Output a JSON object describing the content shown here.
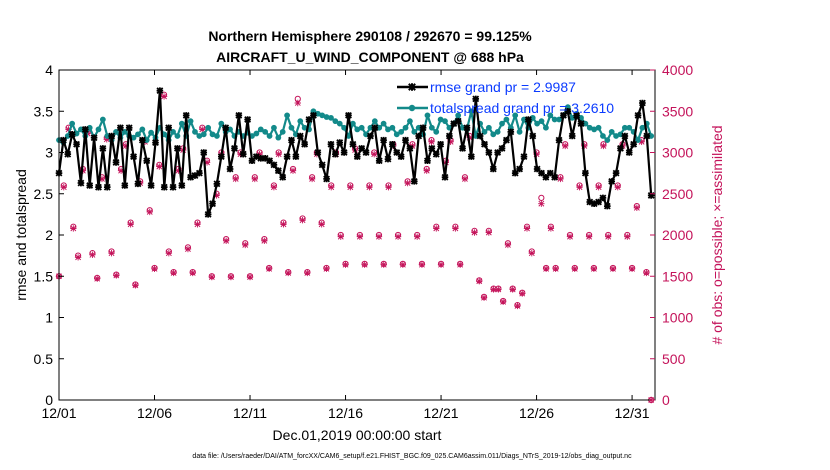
{
  "chart_data": {
    "type": "line",
    "title_line1": "Northern Hemisphere 290108 / 292670 = 99.125%",
    "title_line2": "AIRCRAFT_U_WIND_COMPONENT @ 688 hPa",
    "xlabel": "Dec.01,2019 00:00:00 start",
    "ylabel_left": "rmse and totalspread",
    "ylabel_right": "# of obs: o=possible; ×=assimilated",
    "footer": "data file: /Users/raeder/DAI/ATM_forcXX/CAM6_setup/f.e21.FHIST_BGC.f09_025.CAM6assim.011/Diags_NTrS_2019-12/obs_diag_output.nc",
    "x_ticks": [
      "12/01",
      "12/06",
      "12/11",
      "12/16",
      "12/21",
      "12/26",
      "12/31"
    ],
    "x_tick_days": [
      0,
      5,
      10,
      15,
      20,
      25,
      30
    ],
    "xlim": [
      0,
      31.2
    ],
    "ylim_left": [
      0,
      4
    ],
    "y_ticks_left": [
      "0",
      "0.5",
      "1",
      "1.5",
      "2",
      "2.5",
      "3",
      "3.5",
      "4"
    ],
    "ylim_right": [
      0,
      4000
    ],
    "y_ticks_right": [
      "0",
      "500",
      "1000",
      "1500",
      "2000",
      "2500",
      "3000",
      "3500",
      "4000"
    ],
    "colors": {
      "rmse": "#000000",
      "spread": "#138a8a",
      "obs": "#c4135a",
      "legend_text": "#0b3bff"
    },
    "series": [
      {
        "name": "rmse grand pr = 2.9987",
        "key": "rmse",
        "values": [
          2.75,
          3.15,
          2.98,
          3.22,
          3.1,
          2.63,
          3.28,
          2.6,
          3.18,
          2.58,
          3.05,
          2.58,
          3.2,
          2.88,
          3.3,
          2.6,
          3.3,
          2.95,
          2.62,
          3.15,
          2.9,
          2.6,
          3.12,
          3.75,
          2.58,
          3.3,
          2.58,
          3.05,
          2.6,
          3.45,
          2.7,
          2.72,
          2.75,
          3.0,
          2.25,
          2.38,
          2.62,
          2.95,
          3.3,
          2.8,
          3.05,
          3.45,
          2.98,
          3.4,
          2.9,
          2.95,
          2.93,
          2.93,
          2.9,
          2.85,
          2.78,
          2.7,
          2.95,
          3.15,
          2.95,
          3.2,
          3.1,
          3.4,
          3.45,
          3.0,
          2.85,
          2.68,
          3.1,
          2.98,
          3.12,
          3.0,
          3.45,
          3.1,
          2.95,
          3.05,
          3.0,
          3.2,
          3.3,
          2.9,
          3.15,
          2.92,
          3.1,
          3.0,
          2.95,
          3.15,
          3.05,
          2.65,
          3.2,
          3.3,
          2.9,
          3.05,
          2.98,
          3.1,
          2.7,
          3.2,
          3.35,
          3.38,
          3.05,
          3.3,
          2.95,
          3.65,
          3.2,
          3.1,
          3.0,
          2.8,
          3.0,
          3.05,
          3.15,
          3.25,
          2.75,
          2.8,
          2.95,
          3.4,
          3.2,
          2.8,
          2.75,
          2.7,
          2.75,
          2.7,
          3.15,
          3.45,
          3.5,
          3.2,
          3.45,
          3.35,
          2.75,
          2.4,
          2.38,
          2.4,
          2.45,
          2.35,
          2.65,
          2.75,
          3.05,
          3.2,
          3.0,
          3.1,
          3.45,
          3.6,
          3.2,
          2.48
        ]
      },
      {
        "name": "totalspread grand pr = 3.2610",
        "key": "spread",
        "values": [
          3.15,
          3.12,
          3.2,
          3.35,
          3.23,
          3.28,
          3.2,
          3.3,
          3.18,
          3.28,
          3.4,
          3.2,
          3.15,
          3.25,
          3.18,
          3.25,
          3.2,
          3.18,
          3.22,
          3.28,
          3.15,
          3.24,
          3.18,
          3.3,
          3.22,
          3.15,
          3.25,
          3.2,
          3.35,
          3.2,
          3.38,
          3.25,
          3.2,
          3.22,
          3.3,
          3.22,
          3.2,
          3.35,
          3.25,
          3.28,
          3.2,
          3.25,
          3.2,
          3.24,
          3.2,
          3.23,
          3.28,
          3.25,
          3.2,
          3.3,
          3.18,
          3.25,
          3.45,
          3.3,
          3.22,
          3.38,
          3.3,
          3.28,
          3.5,
          3.47,
          3.45,
          3.43,
          3.42,
          3.38,
          3.35,
          3.3,
          3.2,
          3.35,
          3.28,
          3.3,
          3.22,
          3.3,
          3.38,
          3.3,
          3.35,
          3.28,
          3.3,
          3.22,
          3.25,
          3.3,
          3.38,
          3.25,
          3.3,
          3.22,
          3.45,
          3.3,
          3.25,
          3.4,
          3.38,
          3.3,
          3.35,
          3.45,
          3.3,
          3.28,
          3.5,
          3.2,
          3.35,
          3.25,
          3.3,
          3.22,
          3.25,
          3.35,
          3.4,
          3.3,
          3.45,
          3.25,
          3.4,
          3.3,
          3.42,
          3.35,
          3.38,
          3.3,
          3.45,
          3.4,
          3.4,
          3.45,
          3.55,
          3.42,
          3.47,
          3.42,
          3.35,
          3.3,
          3.28,
          3.3,
          3.2,
          3.15,
          3.25,
          3.2,
          3.22,
          3.3,
          3.3,
          3.25,
          3.15,
          3.3,
          3.35,
          3.2
        ]
      }
    ],
    "obs_possible": [
      [
        0.0,
        1500
      ],
      [
        0.25,
        2600
      ],
      [
        0.5,
        3300
      ],
      [
        0.75,
        2100
      ],
      [
        1.0,
        1750
      ],
      [
        1.25,
        2800
      ],
      [
        1.5,
        3250
      ],
      [
        1.75,
        1780
      ],
      [
        2.0,
        1480
      ],
      [
        2.25,
        2700
      ],
      [
        2.5,
        3180
      ],
      [
        2.75,
        1800
      ],
      [
        3.0,
        1520
      ],
      [
        3.25,
        2800
      ],
      [
        3.5,
        3100
      ],
      [
        3.75,
        2150
      ],
      [
        4.0,
        1400
      ],
      [
        4.25,
        2650
      ],
      [
        4.5,
        3150
      ],
      [
        4.75,
        2300
      ],
      [
        5.0,
        1600
      ],
      [
        5.25,
        2850
      ],
      [
        5.5,
        3700
      ],
      [
        5.75,
        1800
      ],
      [
        6.0,
        1550
      ],
      [
        6.25,
        2800
      ],
      [
        6.5,
        3050
      ],
      [
        6.75,
        1850
      ],
      [
        7.0,
        1550
      ],
      [
        7.25,
        2150
      ],
      [
        7.5,
        3300
      ],
      [
        7.75,
        2900
      ],
      [
        8.0,
        1500
      ],
      [
        8.25,
        2500
      ],
      [
        8.5,
        3000
      ],
      [
        8.75,
        1950
      ],
      [
        9.0,
        1500
      ],
      [
        9.25,
        2700
      ],
      [
        9.5,
        3000
      ],
      [
        9.75,
        1900
      ],
      [
        10.0,
        1500
      ],
      [
        10.25,
        2700
      ],
      [
        10.5,
        3000
      ],
      [
        10.75,
        1950
      ],
      [
        11.0,
        1600
      ],
      [
        11.25,
        2600
      ],
      [
        11.5,
        3000
      ],
      [
        11.75,
        2150
      ],
      [
        12.0,
        1550
      ],
      [
        12.25,
        2800
      ],
      [
        12.5,
        3650
      ],
      [
        12.75,
        2200
      ],
      [
        13.0,
        1550
      ],
      [
        13.25,
        2700
      ],
      [
        13.5,
        3000
      ],
      [
        13.75,
        2150
      ],
      [
        14.0,
        1600
      ],
      [
        14.25,
        2600
      ],
      [
        14.5,
        3000
      ],
      [
        14.75,
        2000
      ],
      [
        15.0,
        1650
      ],
      [
        15.25,
        2600
      ],
      [
        15.5,
        3050
      ],
      [
        15.75,
        2000
      ],
      [
        16.0,
        1650
      ],
      [
        16.25,
        2600
      ],
      [
        16.5,
        3000
      ],
      [
        16.75,
        2000
      ],
      [
        17.0,
        1650
      ],
      [
        17.25,
        2600
      ],
      [
        17.5,
        3100
      ],
      [
        17.75,
        2000
      ],
      [
        18.0,
        1650
      ],
      [
        18.25,
        2650
      ],
      [
        18.5,
        3100
      ],
      [
        18.75,
        2000
      ],
      [
        19.0,
        1650
      ],
      [
        19.25,
        2800
      ],
      [
        19.5,
        3150
      ],
      [
        19.75,
        2100
      ],
      [
        20.0,
        1650
      ],
      [
        20.25,
        2900
      ],
      [
        20.5,
        3150
      ],
      [
        20.75,
        2100
      ],
      [
        21.0,
        1650
      ],
      [
        21.25,
        2700
      ],
      [
        21.5,
        3200
      ],
      [
        21.75,
        2050
      ],
      [
        22.0,
        1450
      ],
      [
        22.25,
        1250
      ],
      [
        22.5,
        2050
      ],
      [
        22.75,
        1350
      ],
      [
        23.0,
        1350
      ],
      [
        23.25,
        1200
      ],
      [
        23.5,
        1900
      ],
      [
        23.75,
        1350
      ],
      [
        24.0,
        1150
      ],
      [
        24.25,
        1300
      ],
      [
        24.5,
        2100
      ],
      [
        24.75,
        1800
      ],
      [
        25.0,
        3000
      ],
      [
        25.25,
        2450
      ],
      [
        25.5,
        1600
      ],
      [
        25.75,
        2100
      ],
      [
        26.0,
        1600
      ],
      [
        26.25,
        2700
      ],
      [
        26.5,
        3100
      ],
      [
        26.75,
        2000
      ],
      [
        27.0,
        1600
      ],
      [
        27.25,
        2600
      ],
      [
        27.5,
        3100
      ],
      [
        27.75,
        2000
      ],
      [
        28.0,
        1600
      ],
      [
        28.25,
        2600
      ],
      [
        28.5,
        3100
      ],
      [
        28.75,
        2000
      ],
      [
        29.0,
        1600
      ],
      [
        29.25,
        2600
      ],
      [
        29.5,
        3100
      ],
      [
        29.75,
        2000
      ],
      [
        30.0,
        1600
      ],
      [
        30.25,
        2350
      ],
      [
        30.5,
        3150
      ],
      [
        30.75,
        1550
      ],
      [
        31.0,
        0
      ]
    ],
    "obs_assimilated": [
      [
        0.0,
        1500
      ],
      [
        0.25,
        2580
      ],
      [
        0.5,
        3280
      ],
      [
        0.75,
        2080
      ],
      [
        1.0,
        1730
      ],
      [
        1.25,
        2780
      ],
      [
        1.5,
        3230
      ],
      [
        1.75,
        1760
      ],
      [
        2.0,
        1470
      ],
      [
        2.25,
        2680
      ],
      [
        2.5,
        3160
      ],
      [
        2.75,
        1780
      ],
      [
        3.0,
        1510
      ],
      [
        3.25,
        2780
      ],
      [
        3.5,
        3080
      ],
      [
        3.75,
        2130
      ],
      [
        4.0,
        1390
      ],
      [
        4.25,
        2630
      ],
      [
        4.5,
        3130
      ],
      [
        4.75,
        2280
      ],
      [
        5.0,
        1590
      ],
      [
        5.25,
        2830
      ],
      [
        5.5,
        3680
      ],
      [
        5.75,
        1780
      ],
      [
        6.0,
        1540
      ],
      [
        6.25,
        2780
      ],
      [
        6.5,
        3030
      ],
      [
        6.75,
        1830
      ],
      [
        7.0,
        1540
      ],
      [
        7.25,
        2130
      ],
      [
        7.5,
        3280
      ],
      [
        7.75,
        2880
      ],
      [
        8.0,
        1490
      ],
      [
        8.25,
        2480
      ],
      [
        8.5,
        2980
      ],
      [
        8.75,
        1930
      ],
      [
        9.0,
        1490
      ],
      [
        9.25,
        2680
      ],
      [
        9.5,
        2980
      ],
      [
        9.75,
        1880
      ],
      [
        10.0,
        1490
      ],
      [
        10.25,
        2680
      ],
      [
        10.5,
        2980
      ],
      [
        10.75,
        1930
      ],
      [
        11.0,
        1590
      ],
      [
        11.25,
        2580
      ],
      [
        11.5,
        2980
      ],
      [
        11.75,
        2130
      ],
      [
        12.0,
        1540
      ],
      [
        12.25,
        2780
      ],
      [
        12.5,
        3600
      ],
      [
        12.75,
        2180
      ],
      [
        13.0,
        1540
      ],
      [
        13.25,
        2680
      ],
      [
        13.5,
        2980
      ],
      [
        13.75,
        2130
      ],
      [
        14.0,
        1590
      ],
      [
        14.25,
        2580
      ],
      [
        14.5,
        2980
      ],
      [
        14.75,
        1980
      ],
      [
        15.0,
        1640
      ],
      [
        15.25,
        2580
      ],
      [
        15.5,
        3030
      ],
      [
        15.75,
        1980
      ],
      [
        16.0,
        1640
      ],
      [
        16.25,
        2580
      ],
      [
        16.5,
        2980
      ],
      [
        16.75,
        1980
      ],
      [
        17.0,
        1640
      ],
      [
        17.25,
        2580
      ],
      [
        17.5,
        3080
      ],
      [
        17.75,
        1980
      ],
      [
        18.0,
        1640
      ],
      [
        18.25,
        2630
      ],
      [
        18.5,
        3080
      ],
      [
        18.75,
        1980
      ],
      [
        19.0,
        1640
      ],
      [
        19.25,
        2780
      ],
      [
        19.5,
        3130
      ],
      [
        19.75,
        2080
      ],
      [
        20.0,
        1640
      ],
      [
        20.25,
        2880
      ],
      [
        20.5,
        3130
      ],
      [
        20.75,
        2080
      ],
      [
        21.0,
        1640
      ],
      [
        21.25,
        2680
      ],
      [
        21.5,
        3180
      ],
      [
        21.75,
        2030
      ],
      [
        22.0,
        1440
      ],
      [
        22.25,
        1240
      ],
      [
        22.5,
        2030
      ],
      [
        22.75,
        1340
      ],
      [
        23.0,
        1340
      ],
      [
        23.25,
        1190
      ],
      [
        23.5,
        1880
      ],
      [
        23.75,
        1340
      ],
      [
        24.0,
        1140
      ],
      [
        24.25,
        1290
      ],
      [
        24.5,
        2080
      ],
      [
        24.75,
        1780
      ],
      [
        25.0,
        2980
      ],
      [
        25.25,
        2380
      ],
      [
        25.5,
        1590
      ],
      [
        25.75,
        2080
      ],
      [
        26.0,
        1590
      ],
      [
        26.25,
        2680
      ],
      [
        26.5,
        3080
      ],
      [
        26.75,
        1980
      ],
      [
        27.0,
        1590
      ],
      [
        27.25,
        2580
      ],
      [
        27.5,
        3080
      ],
      [
        27.75,
        1980
      ],
      [
        28.0,
        1590
      ],
      [
        28.25,
        2580
      ],
      [
        28.5,
        3080
      ],
      [
        28.75,
        1980
      ],
      [
        29.0,
        1590
      ],
      [
        29.25,
        2580
      ],
      [
        29.5,
        3080
      ],
      [
        29.75,
        1980
      ],
      [
        30.0,
        1590
      ],
      [
        30.25,
        2330
      ],
      [
        30.5,
        3130
      ],
      [
        30.75,
        1540
      ],
      [
        31.0,
        0
      ]
    ]
  }
}
